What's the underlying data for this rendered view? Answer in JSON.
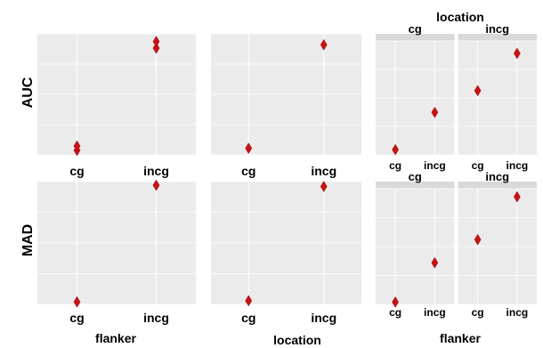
{
  "row_labels": [
    "AUC",
    "MAD"
  ],
  "column_titles": [
    "flanker",
    "location",
    "flanker"
  ],
  "facet_title": "location",
  "facet_strip_labels": [
    "cg",
    "incg"
  ],
  "colors": {
    "panel_bg": "#ebebeb",
    "strip_bg": "#d9d9d9",
    "grid": "#ffffff",
    "marker": "#cc1111",
    "text": "#000000"
  },
  "chart_data": [
    {
      "type": "scatter",
      "row": "AUC",
      "col": "flanker",
      "categories": [
        "cg",
        "incg"
      ],
      "series": [
        {
          "values": [
            [
              0.04,
              0.08
            ],
            [
              0.97,
              1.03
            ]
          ]
        }
      ],
      "ylim": [
        0,
        1.1
      ]
    },
    {
      "type": "scatter",
      "row": "AUC",
      "col": "location",
      "categories": [
        "cg",
        "incg"
      ],
      "series": [
        {
          "values": [
            [
              0.06
            ],
            [
              1.0
            ]
          ]
        }
      ],
      "ylim": [
        0,
        1.1
      ]
    },
    {
      "type": "scatter",
      "row": "AUC",
      "col": "flanker",
      "facet": "location",
      "facet_levels": [
        "cg",
        "incg"
      ],
      "categories": [
        "cg",
        "incg"
      ],
      "series": [
        {
          "values": {
            "cg": [
              0.05,
              0.41
            ],
            "incg": [
              0.62,
              0.98
            ]
          }
        }
      ],
      "ylim": [
        0,
        1.1
      ]
    },
    {
      "type": "scatter",
      "row": "MAD",
      "col": "flanker",
      "categories": [
        "cg",
        "incg"
      ],
      "series": [
        {
          "values": [
            [
              0.02
            ],
            [
              0.97
            ]
          ]
        }
      ],
      "ylim": [
        0,
        1.0
      ]
    },
    {
      "type": "scatter",
      "row": "MAD",
      "col": "location",
      "categories": [
        "cg",
        "incg"
      ],
      "series": [
        {
          "values": [
            [
              0.03
            ],
            [
              0.96
            ]
          ]
        }
      ],
      "ylim": [
        0,
        1.0
      ]
    },
    {
      "type": "scatter",
      "row": "MAD",
      "col": "flanker",
      "facet": "location",
      "facet_levels": [
        "cg",
        "incg"
      ],
      "categories": [
        "cg",
        "incg"
      ],
      "series": [
        {
          "values": {
            "cg": [
              0.02,
              0.36
            ],
            "incg": [
              0.56,
              0.93
            ]
          }
        }
      ],
      "ylim": [
        0,
        1.0
      ]
    }
  ]
}
